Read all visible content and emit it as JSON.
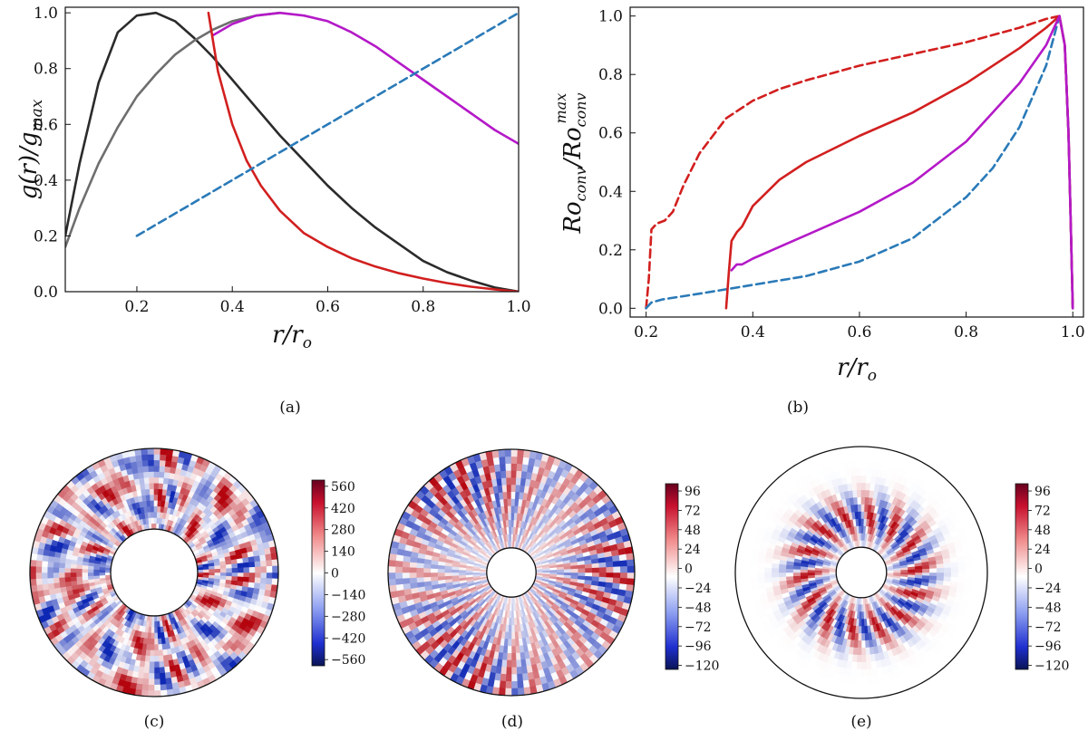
{
  "chart_data": [
    {
      "id": "a",
      "type": "line",
      "panel_label": "(a)",
      "xlabel": "r/r",
      "xlabel_sub": "o",
      "ylabel": "g(r)/g",
      "ylabel_sub": "max",
      "xlim": [
        0.05,
        1.0
      ],
      "ylim": [
        0.0,
        1.02
      ],
      "xticks": [
        "0.2",
        "0.4",
        "0.6",
        "0.8",
        "1.0"
      ],
      "xtick_values": [
        0.2,
        0.4,
        0.6,
        0.8,
        1.0
      ],
      "yticks": [
        "0.0",
        "0.2",
        "0.4",
        "0.6",
        "0.8",
        "1.0"
      ],
      "ytick_values": [
        0.0,
        0.2,
        0.4,
        0.6,
        0.8,
        1.0
      ],
      "series": [
        {
          "name": "black",
          "color": "#2b2b2b",
          "dashed": false,
          "x": [
            0.05,
            0.08,
            0.12,
            0.16,
            0.2,
            0.24,
            0.28,
            0.32,
            0.36,
            0.4,
            0.45,
            0.5,
            0.55,
            0.6,
            0.65,
            0.7,
            0.75,
            0.8,
            0.85,
            0.9,
            0.95,
            1.0
          ],
          "y": [
            0.2,
            0.46,
            0.75,
            0.93,
            0.99,
            1.0,
            0.97,
            0.91,
            0.84,
            0.76,
            0.66,
            0.56,
            0.47,
            0.38,
            0.3,
            0.23,
            0.17,
            0.11,
            0.07,
            0.04,
            0.015,
            0.0
          ]
        },
        {
          "name": "gray",
          "color": "#6e6e6e",
          "dashed": false,
          "x": [
            0.05,
            0.08,
            0.12,
            0.16,
            0.2,
            0.24,
            0.28,
            0.32,
            0.36,
            0.4,
            0.45,
            0.5
          ],
          "y": [
            0.16,
            0.3,
            0.46,
            0.59,
            0.7,
            0.78,
            0.85,
            0.9,
            0.94,
            0.97,
            0.99,
            1.0
          ]
        },
        {
          "name": "magenta",
          "color": "#b419c8",
          "dashed": false,
          "x": [
            0.36,
            0.4,
            0.45,
            0.5,
            0.55,
            0.6,
            0.65,
            0.7,
            0.75,
            0.8,
            0.85,
            0.9,
            0.95,
            1.0
          ],
          "y": [
            0.92,
            0.96,
            0.99,
            1.0,
            0.99,
            0.97,
            0.93,
            0.88,
            0.82,
            0.76,
            0.7,
            0.64,
            0.58,
            0.53
          ]
        },
        {
          "name": "red",
          "color": "#d21f1f",
          "dashed": false,
          "x": [
            0.35,
            0.37,
            0.4,
            0.43,
            0.46,
            0.5,
            0.55,
            0.6,
            0.65,
            0.7,
            0.75,
            0.8,
            0.85,
            0.9,
            0.95,
            1.0
          ],
          "y": [
            1.0,
            0.79,
            0.6,
            0.47,
            0.38,
            0.29,
            0.21,
            0.16,
            0.12,
            0.09,
            0.066,
            0.047,
            0.031,
            0.018,
            0.008,
            0.0
          ]
        },
        {
          "name": "blue-dashed",
          "color": "#2a7ab8",
          "dashed": true,
          "x": [
            0.2,
            1.0
          ],
          "y": [
            0.2,
            1.0
          ]
        }
      ]
    },
    {
      "id": "b",
      "type": "line",
      "panel_label": "(b)",
      "xlabel": "r/r",
      "xlabel_sub": "o",
      "ylabel": "Ro",
      "ylabel_sub": "conv",
      "ylabel_den": "/Ro",
      "ylabel_den_sub": "conv",
      "ylabel_den_sup": "max",
      "xlim": [
        0.17,
        1.02
      ],
      "ylim": [
        -0.03,
        1.03
      ],
      "xticks": [
        "0.2",
        "0.4",
        "0.6",
        "0.8",
        "1.0"
      ],
      "xtick_values": [
        0.2,
        0.4,
        0.6,
        0.8,
        1.0
      ],
      "yticks": [
        "0.0",
        "0.2",
        "0.4",
        "0.6",
        "0.8",
        "1.0"
      ],
      "ytick_values": [
        0.0,
        0.2,
        0.4,
        0.6,
        0.8,
        1.0
      ],
      "series": [
        {
          "name": "red-dashed",
          "color": "#d21f1f",
          "dashed": true,
          "x": [
            0.2,
            0.205,
            0.21,
            0.22,
            0.235,
            0.25,
            0.27,
            0.3,
            0.35,
            0.4,
            0.45,
            0.5,
            0.6,
            0.7,
            0.8,
            0.9,
            0.95,
            0.975,
            0.985,
            0.992,
            0.996,
            1.0
          ],
          "y": [
            0.0,
            0.1,
            0.27,
            0.29,
            0.3,
            0.33,
            0.42,
            0.53,
            0.65,
            0.71,
            0.75,
            0.78,
            0.83,
            0.87,
            0.91,
            0.96,
            0.99,
            1.0,
            0.9,
            0.6,
            0.3,
            0.0
          ]
        },
        {
          "name": "blue-dashed",
          "color": "#2a7ab8",
          "dashed": true,
          "x": [
            0.2,
            0.21,
            0.23,
            0.3,
            0.4,
            0.5,
            0.6,
            0.7,
            0.8,
            0.85,
            0.9,
            0.95,
            0.975,
            0.985,
            0.992,
            0.996,
            1.0
          ],
          "y": [
            0.0,
            0.02,
            0.03,
            0.05,
            0.08,
            0.11,
            0.16,
            0.24,
            0.38,
            0.48,
            0.62,
            0.83,
            1.0,
            0.9,
            0.6,
            0.3,
            0.0
          ]
        },
        {
          "name": "red-solid",
          "color": "#d21f1f",
          "dashed": false,
          "x": [
            0.35,
            0.355,
            0.36,
            0.37,
            0.38,
            0.4,
            0.45,
            0.5,
            0.6,
            0.7,
            0.8,
            0.9,
            0.95,
            0.975,
            0.985,
            0.992,
            0.996,
            1.0
          ],
          "y": [
            0.0,
            0.12,
            0.23,
            0.26,
            0.28,
            0.35,
            0.44,
            0.5,
            0.59,
            0.67,
            0.77,
            0.89,
            0.96,
            1.0,
            0.9,
            0.6,
            0.3,
            0.0
          ]
        },
        {
          "name": "magenta-solid",
          "color": "#b419c8",
          "dashed": false,
          "x": [
            0.36,
            0.37,
            0.38,
            0.4,
            0.45,
            0.5,
            0.6,
            0.7,
            0.8,
            0.9,
            0.95,
            0.975,
            0.985,
            0.992,
            0.996,
            1.0
          ],
          "y": [
            0.13,
            0.15,
            0.15,
            0.17,
            0.21,
            0.25,
            0.33,
            0.43,
            0.57,
            0.77,
            0.9,
            1.0,
            0.9,
            0.6,
            0.3,
            0.0
          ]
        }
      ]
    },
    {
      "id": "c",
      "type": "heatmap",
      "panel_label": "(c)",
      "inner_radius_ratio": 0.35,
      "pattern": "turbulent",
      "colorbar_ticks": [
        "560",
        "420",
        "280",
        "140",
        "0",
        "−140",
        "−280",
        "−420",
        "−560"
      ],
      "colorbar_range": [
        -600,
        600
      ]
    },
    {
      "id": "d",
      "type": "heatmap",
      "panel_label": "(d)",
      "inner_radius_ratio": 0.2,
      "pattern": "spiral-outer",
      "colorbar_ticks": [
        "96",
        "72",
        "48",
        "24",
        "0",
        "−24",
        "−48",
        "−72",
        "−96",
        "−120"
      ],
      "colorbar_range": [
        -125,
        105
      ]
    },
    {
      "id": "e",
      "type": "heatmap",
      "panel_label": "(e)",
      "inner_radius_ratio": 0.2,
      "pattern": "spiral-inner",
      "colorbar_ticks": [
        "96",
        "72",
        "48",
        "24",
        "0",
        "−24",
        "−48",
        "−72",
        "−96",
        "−120"
      ],
      "colorbar_range": [
        -125,
        105
      ]
    }
  ],
  "colors": {
    "red": "#b40426",
    "blue": "#1f3fb4",
    "white": "#ffffff",
    "axis": "#111111"
  }
}
